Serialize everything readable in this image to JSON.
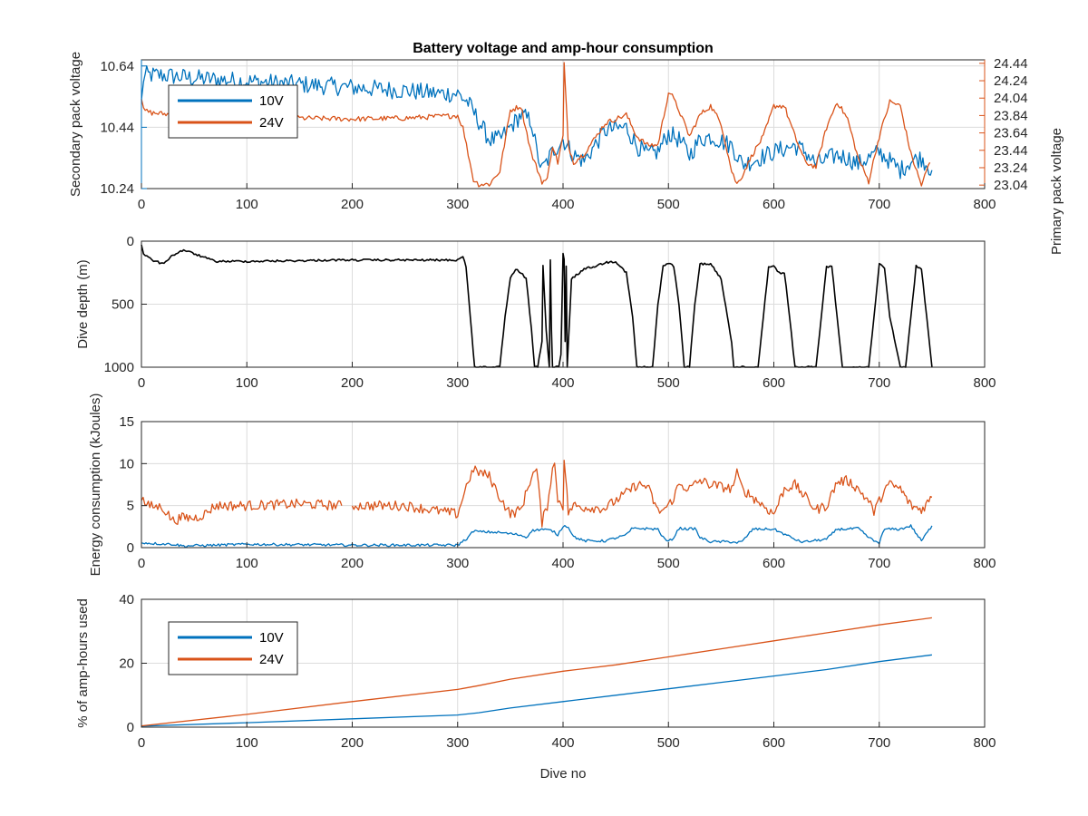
{
  "chart_data": [
    {
      "type": "line",
      "title": "Battery voltage and amp-hour consumption",
      "xlabel": "",
      "xlim": [
        0,
        800
      ],
      "x_ticks": [
        "0",
        "100",
        "200",
        "300",
        "400",
        "500",
        "600",
        "700",
        "800"
      ],
      "ylabel": "Secondary pack voltage",
      "ylim": [
        10.24,
        10.66
      ],
      "y_ticks": [
        "10.24",
        "10.44",
        "10.64"
      ],
      "y2label": "Primary pack voltage",
      "y2lim": [
        23.0,
        24.48
      ],
      "y2_ticks": [
        "23.04",
        "23.24",
        "23.44",
        "23.64",
        "23.84",
        "24.04",
        "24.24",
        "24.44"
      ],
      "grid": true,
      "legend": "upper-left",
      "series": [
        {
          "name": "10V",
          "axis": "left",
          "color": "#0072bd",
          "noise": 0.03,
          "x": [
            0,
            2,
            5,
            20,
            50,
            100,
            150,
            200,
            250,
            280,
            300,
            310,
            320,
            330,
            340,
            350,
            360,
            370,
            375,
            380,
            390,
            400,
            410,
            420,
            440,
            460,
            470,
            480,
            490,
            500,
            510,
            520,
            530,
            540,
            560,
            570,
            580,
            600,
            620,
            630,
            640,
            660,
            670,
            680,
            690,
            700,
            710,
            720,
            730,
            740,
            750
          ],
          "y": [
            10.52,
            10.6,
            10.61,
            10.61,
            10.6,
            10.59,
            10.58,
            10.57,
            10.56,
            10.55,
            10.55,
            10.52,
            10.46,
            10.4,
            10.4,
            10.44,
            10.48,
            10.46,
            10.36,
            10.3,
            10.36,
            10.4,
            10.35,
            10.33,
            10.43,
            10.44,
            10.38,
            10.35,
            10.36,
            10.42,
            10.4,
            10.35,
            10.4,
            10.41,
            10.38,
            10.32,
            10.33,
            10.36,
            10.38,
            10.36,
            10.32,
            10.35,
            10.34,
            10.32,
            10.34,
            10.36,
            10.33,
            10.3,
            10.33,
            10.34,
            10.3
          ]
        },
        {
          "name": "24V",
          "axis": "right",
          "color": "#d95319",
          "noise": 0.03,
          "x": [
            0,
            2,
            10,
            50,
            100,
            150,
            200,
            250,
            300,
            305,
            310,
            315,
            320,
            330,
            340,
            350,
            360,
            370,
            380,
            385,
            390,
            395,
            400,
            401,
            405,
            410,
            420,
            440,
            460,
            470,
            480,
            490,
            500,
            502,
            510,
            520,
            530,
            540,
            550,
            560,
            565,
            570,
            580,
            590,
            600,
            610,
            620,
            630,
            640,
            650,
            660,
            670,
            680,
            690,
            700,
            710,
            720,
            730,
            740,
            748
          ],
          "y": [
            24.04,
            23.9,
            23.87,
            23.83,
            23.82,
            23.81,
            23.8,
            23.81,
            23.84,
            23.7,
            23.4,
            23.1,
            23.05,
            23.05,
            23.2,
            23.9,
            23.95,
            23.4,
            23.08,
            23.1,
            23.5,
            23.3,
            23.6,
            24.44,
            23.5,
            23.3,
            23.4,
            23.75,
            23.85,
            23.6,
            23.5,
            23.5,
            24.1,
            24.1,
            23.9,
            23.6,
            23.85,
            23.95,
            23.75,
            23.2,
            23.05,
            23.15,
            23.4,
            23.6,
            23.95,
            23.95,
            23.6,
            23.3,
            23.25,
            23.7,
            24.0,
            23.8,
            23.35,
            23.08,
            23.6,
            24.0,
            23.95,
            23.4,
            23.04,
            23.3
          ]
        }
      ]
    },
    {
      "type": "line",
      "title": "",
      "xlabel": "",
      "xlim": [
        0,
        800
      ],
      "x_ticks": [
        "0",
        "100",
        "200",
        "300",
        "400",
        "500",
        "600",
        "700",
        "800"
      ],
      "ylabel": "Dive depth (m)",
      "ylim": [
        0,
        1000
      ],
      "y_ticks": [
        "0",
        "500",
        "1000"
      ],
      "y_reversed": true,
      "grid": true,
      "series": [
        {
          "color": "#000000",
          "noise": 8,
          "x": [
            0,
            2,
            10,
            20,
            30,
            40,
            50,
            70,
            100,
            150,
            180,
            200,
            250,
            280,
            300,
            305,
            308,
            312,
            316,
            320,
            340,
            345,
            350,
            355,
            360,
            365,
            370,
            373,
            376,
            380,
            381,
            384,
            387,
            388,
            389,
            390,
            392,
            394,
            396,
            398,
            400,
            401,
            402,
            403,
            404,
            408,
            420,
            430,
            440,
            450,
            460,
            466,
            470,
            480,
            485,
            490,
            495,
            500,
            505,
            510,
            515,
            520,
            525,
            530,
            540,
            550,
            560,
            562,
            565,
            570,
            580,
            585,
            590,
            595,
            600,
            605,
            610,
            615,
            620,
            625,
            630,
            640,
            645,
            650,
            655,
            660,
            665,
            670,
            680,
            690,
            695,
            700,
            705,
            710,
            720,
            725,
            730,
            735,
            740,
            745,
            750
          ],
          "y": [
            30,
            100,
            150,
            180,
            110,
            70,
            100,
            160,
            160,
            155,
            150,
            150,
            150,
            150,
            150,
            120,
            200,
            600,
            1000,
            1000,
            1000,
            600,
            300,
            220,
            250,
            300,
            700,
            1000,
            1000,
            800,
            200,
            700,
            1000,
            150,
            700,
            1000,
            1000,
            1000,
            1000,
            900,
            100,
            150,
            800,
            200,
            1000,
            300,
            220,
            200,
            170,
            160,
            250,
            600,
            1000,
            1000,
            1000,
            500,
            200,
            170,
            200,
            500,
            1000,
            1000,
            500,
            180,
            180,
            300,
            800,
            1000,
            1000,
            1000,
            1000,
            1000,
            600,
            200,
            200,
            250,
            250,
            600,
            1000,
            1000,
            1000,
            1000,
            600,
            200,
            200,
            600,
            1000,
            1000,
            1000,
            1000,
            600,
            180,
            220,
            600,
            1000,
            1000,
            600,
            200,
            220,
            600,
            1000
          ]
        }
      ]
    },
    {
      "type": "line",
      "title": "",
      "xlabel": "",
      "xlim": [
        0,
        800
      ],
      "x_ticks": [
        "0",
        "100",
        "200",
        "300",
        "400",
        "500",
        "600",
        "700",
        "800"
      ],
      "ylabel": "Energy consumption (kJoules)",
      "ylim": [
        0,
        15
      ],
      "y_ticks": [
        "0",
        "5",
        "10",
        "15"
      ],
      "grid": true,
      "series": [
        {
          "name": "24V",
          "color": "#d95319",
          "noise": 0.6,
          "x": [
            0,
            5,
            20,
            30,
            40,
            50,
            60,
            70,
            100,
            150,
            190,
            195,
            200,
            250,
            300,
            305,
            310,
            315,
            320,
            330,
            340,
            345,
            350,
            360,
            370,
            375,
            380,
            385,
            390,
            392,
            395,
            400,
            401,
            405,
            410,
            420,
            440,
            460,
            470,
            480,
            490,
            495,
            500,
            505,
            510,
            520,
            530,
            540,
            560,
            565,
            570,
            580,
            590,
            600,
            610,
            620,
            630,
            640,
            650,
            660,
            670,
            680,
            690,
            695,
            700,
            705,
            710,
            720,
            730,
            740,
            750
          ],
          "y": [
            6,
            5,
            4.8,
            3.2,
            3.6,
            3.5,
            4.0,
            5.0,
            5.0,
            5.2,
            5.0,
            null,
            5.0,
            5.0,
            4.0,
            6,
            8,
            9.2,
            9.0,
            8.5,
            6,
            5.0,
            4.0,
            4.5,
            8.5,
            9.3,
            3.0,
            5,
            9.5,
            9.8,
            5.8,
            5,
            10.8,
            4.2,
            5.0,
            4.8,
            4.7,
            6.5,
            7.5,
            7.3,
            4.3,
            4.5,
            5.0,
            6.0,
            7.5,
            7.0,
            8.0,
            7.5,
            7.0,
            8.8,
            7.0,
            6.0,
            5.0,
            4.0,
            7.0,
            7.5,
            6.0,
            4.5,
            5.0,
            7.8,
            8.0,
            7.0,
            5.5,
            4.3,
            5.5,
            7.0,
            7.5,
            7.0,
            5.0,
            4.5,
            6.0
          ]
        },
        {
          "name": "10V",
          "color": "#0072bd",
          "noise": 0.15,
          "x": [
            0,
            10,
            30,
            40,
            100,
            200,
            300,
            310,
            315,
            320,
            340,
            360,
            365,
            370,
            380,
            390,
            395,
            400,
            405,
            410,
            420,
            440,
            460,
            465,
            470,
            490,
            495,
            500,
            505,
            510,
            520,
            525,
            530,
            540,
            560,
            565,
            570,
            580,
            600,
            620,
            625,
            630,
            650,
            660,
            670,
            680,
            690,
            695,
            700,
            705,
            720,
            730,
            740,
            750
          ],
          "y": [
            0.6,
            0.5,
            0.4,
            0.2,
            0.4,
            0.3,
            0.3,
            1.2,
            2.0,
            1.9,
            1.8,
            1.5,
            1.2,
            2.0,
            2.2,
            2.0,
            1.5,
            2.6,
            2.5,
            1.3,
            0.8,
            0.8,
            1.5,
            2.2,
            2.3,
            2.2,
            1.2,
            0.7,
            1.2,
            2.3,
            2.2,
            2.3,
            1.2,
            0.7,
            0.7,
            0.6,
            0.7,
            2.2,
            2.2,
            1.0,
            0.7,
            0.7,
            1.0,
            2.2,
            2.2,
            2.3,
            1.2,
            0.8,
            0.6,
            2.2,
            2.2,
            2.6,
            0.8,
            2.6
          ]
        }
      ]
    },
    {
      "type": "line",
      "title": "",
      "xlabel": "Dive no",
      "xlim": [
        0,
        800
      ],
      "x_ticks": [
        "0",
        "100",
        "200",
        "300",
        "400",
        "500",
        "600",
        "700",
        "800"
      ],
      "ylabel": "% of amp-hours used",
      "ylim": [
        0,
        40
      ],
      "y_ticks": [
        "0",
        "20",
        "40"
      ],
      "grid": true,
      "legend": "upper-left",
      "series": [
        {
          "name": "10V",
          "color": "#0072bd",
          "noise": 0,
          "x": [
            0,
            100,
            200,
            300,
            320,
            350,
            400,
            450,
            500,
            550,
            600,
            650,
            700,
            750
          ],
          "y": [
            0.3,
            1.4,
            2.6,
            3.8,
            4.5,
            6.0,
            8.0,
            10.0,
            12.0,
            14.0,
            16.0,
            18.0,
            20.5,
            22.6
          ]
        },
        {
          "name": "24V",
          "color": "#d95319",
          "noise": 0,
          "x": [
            0,
            100,
            200,
            300,
            320,
            350,
            400,
            450,
            500,
            550,
            600,
            650,
            700,
            750
          ],
          "y": [
            0.4,
            4.0,
            8.0,
            11.8,
            13.0,
            15.0,
            17.5,
            19.5,
            22.0,
            24.5,
            27.0,
            29.5,
            32.0,
            34.2
          ]
        }
      ]
    }
  ]
}
